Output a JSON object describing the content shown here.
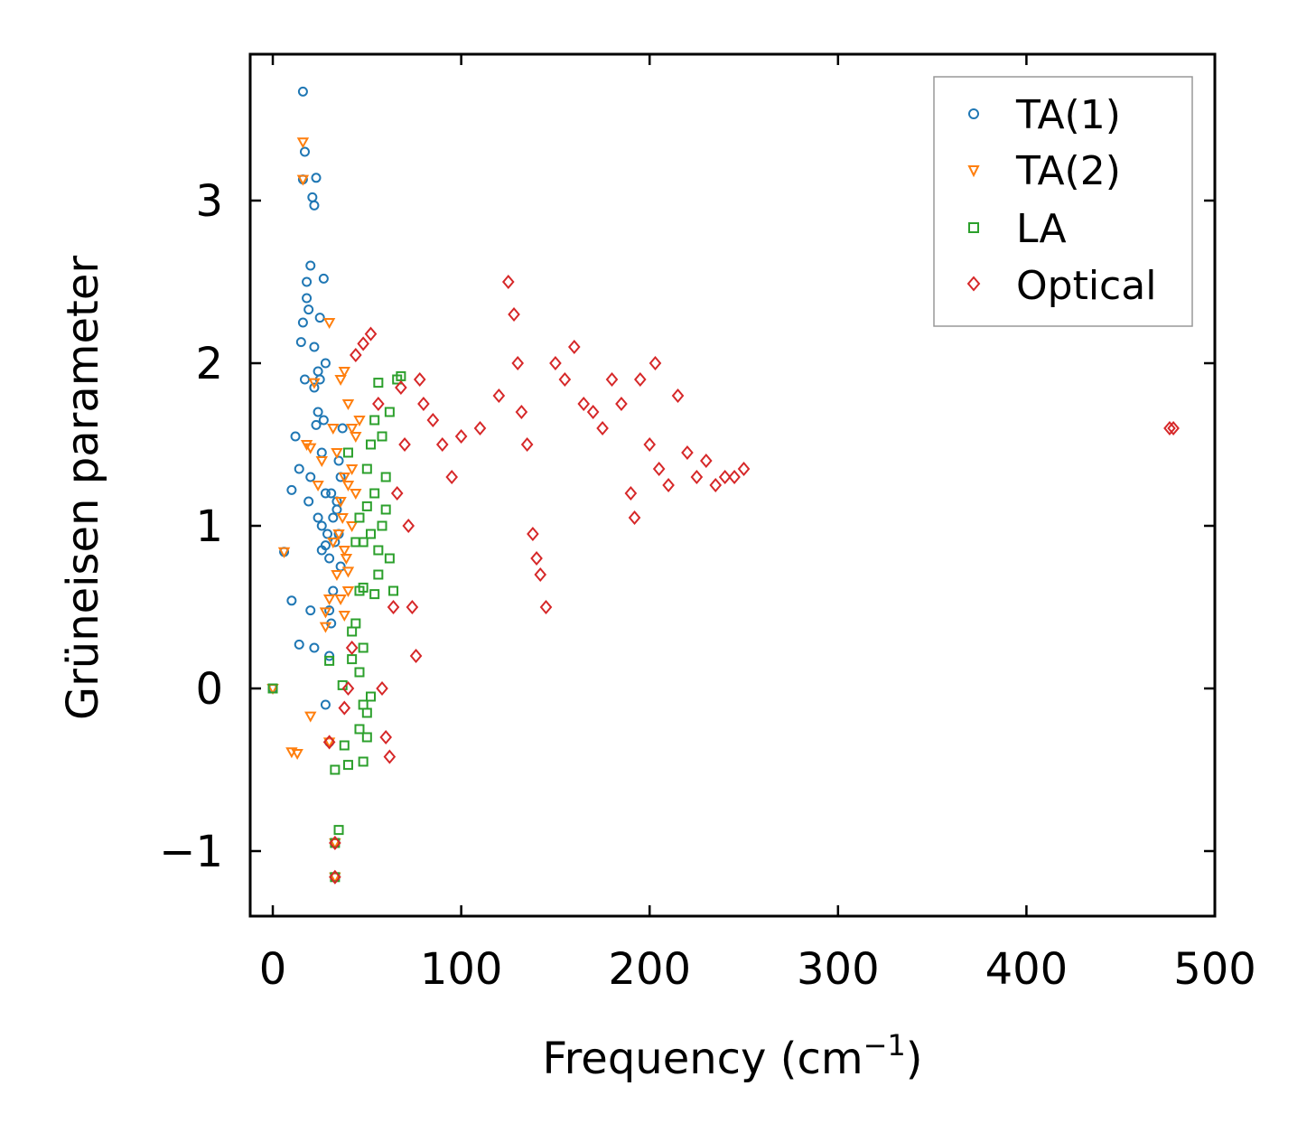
{
  "chart_data": {
    "type": "scatter",
    "title": "",
    "xlabel": "Frequency (cm",
    "xlabel_sup": "−1",
    "xlabel_close": ")",
    "ylabel": "Grüneisen parameter",
    "xlim": [
      -12,
      500
    ],
    "ylim": [
      -1.4,
      3.9
    ],
    "xticks": [
      0,
      100,
      200,
      300,
      400,
      500
    ],
    "yticks": [
      -1,
      0,
      1,
      2,
      3
    ],
    "xtick_labels": [
      "0",
      "100",
      "200",
      "300",
      "400",
      "500"
    ],
    "ytick_labels": [
      "−1",
      "0",
      "1",
      "2",
      "3"
    ],
    "grid": false,
    "legend_position": "top-right",
    "series": [
      {
        "name": "TA(1)",
        "color": "#1f77b4",
        "marker": "circle",
        "points": [
          [
            0,
            0
          ],
          [
            6,
            0.84
          ],
          [
            10,
            0.54
          ],
          [
            12,
            1.55
          ],
          [
            14,
            0.27
          ],
          [
            16,
            3.67
          ],
          [
            17,
            3.3
          ],
          [
            16,
            3.13
          ],
          [
            18,
            2.5
          ],
          [
            19,
            2.33
          ],
          [
            20,
            2.6
          ],
          [
            21,
            3.02
          ],
          [
            22,
            2.97
          ],
          [
            23,
            3.14
          ],
          [
            22,
            2.1
          ],
          [
            24,
            1.95
          ],
          [
            25,
            1.9
          ],
          [
            20,
            1.3
          ],
          [
            19,
            1.15
          ],
          [
            20,
            0.48
          ],
          [
            22,
            0.25
          ],
          [
            24,
            1.05
          ],
          [
            26,
            0.85
          ],
          [
            27,
            2.52
          ],
          [
            28,
            2.0
          ],
          [
            28,
            1.2
          ],
          [
            29,
            0.95
          ],
          [
            30,
            0.2
          ],
          [
            30,
            0.48
          ],
          [
            31,
            0.4
          ],
          [
            32,
            0.6
          ],
          [
            33,
            0.9
          ],
          [
            34,
            1.1
          ],
          [
            35,
            1.4
          ],
          [
            36,
            0.75
          ],
          [
            37,
            1.6
          ],
          [
            28,
            -0.1
          ],
          [
            30,
            -0.33
          ],
          [
            33,
            -0.95
          ],
          [
            33,
            -1.16
          ],
          [
            10,
            1.22
          ],
          [
            14,
            1.35
          ],
          [
            16,
            2.25
          ],
          [
            18,
            2.4
          ],
          [
            22,
            1.85
          ],
          [
            24,
            1.7
          ],
          [
            26,
            1.45
          ],
          [
            26,
            1.0
          ],
          [
            28,
            0.88
          ],
          [
            30,
            0.8
          ],
          [
            32,
            1.05
          ],
          [
            34,
            1.15
          ],
          [
            15,
            2.13
          ],
          [
            17,
            1.9
          ],
          [
            23,
            1.62
          ],
          [
            25,
            2.28
          ],
          [
            27,
            1.65
          ],
          [
            31,
            1.2
          ],
          [
            35,
            0.95
          ],
          [
            36,
            1.3
          ]
        ]
      },
      {
        "name": "TA(2)",
        "color": "#ff7f0e",
        "marker": "triangle-down",
        "points": [
          [
            0,
            0
          ],
          [
            6,
            0.84
          ],
          [
            10,
            -0.39
          ],
          [
            13,
            -0.4
          ],
          [
            16,
            3.36
          ],
          [
            16,
            3.13
          ],
          [
            20,
            -0.17
          ],
          [
            28,
            0.47
          ],
          [
            30,
            -0.33
          ],
          [
            33,
            -0.95
          ],
          [
            33,
            -1.16
          ],
          [
            36,
            1.9
          ],
          [
            38,
            1.95
          ],
          [
            40,
            1.75
          ],
          [
            42,
            1.6
          ],
          [
            44,
            1.55
          ],
          [
            46,
            1.65
          ],
          [
            38,
            1.3
          ],
          [
            40,
            1.25
          ],
          [
            42,
            1.35
          ],
          [
            36,
            0.55
          ],
          [
            38,
            0.45
          ],
          [
            40,
            0.6
          ],
          [
            35,
            0.95
          ],
          [
            37,
            1.05
          ],
          [
            39,
            0.8
          ],
          [
            34,
            0.7
          ],
          [
            32,
            0.9
          ],
          [
            30,
            0.55
          ],
          [
            28,
            0.38
          ],
          [
            18,
            1.5
          ],
          [
            20,
            1.48
          ],
          [
            22,
            1.88
          ],
          [
            24,
            1.25
          ],
          [
            26,
            1.4
          ],
          [
            30,
            2.25
          ],
          [
            32,
            1.6
          ],
          [
            34,
            1.45
          ],
          [
            36,
            1.15
          ],
          [
            38,
            0.85
          ],
          [
            40,
            0.72
          ],
          [
            42,
            1.0
          ],
          [
            44,
            1.2
          ]
        ]
      },
      {
        "name": "LA",
        "color": "#2ca02c",
        "marker": "square",
        "points": [
          [
            0,
            0
          ],
          [
            30,
            0.17
          ],
          [
            33,
            -0.5
          ],
          [
            35,
            -0.87
          ],
          [
            33,
            -0.95
          ],
          [
            33,
            -1.16
          ],
          [
            37,
            0.02
          ],
          [
            38,
            -0.35
          ],
          [
            40,
            -0.47
          ],
          [
            42,
            0.18
          ],
          [
            44,
            0.4
          ],
          [
            46,
            0.6
          ],
          [
            48,
            0.9
          ],
          [
            48,
            -0.45
          ],
          [
            50,
            -0.3
          ],
          [
            50,
            1.35
          ],
          [
            52,
            1.5
          ],
          [
            54,
            1.65
          ],
          [
            56,
            1.88
          ],
          [
            58,
            1.55
          ],
          [
            60,
            1.1
          ],
          [
            62,
            0.8
          ],
          [
            64,
            0.6
          ],
          [
            66,
            1.9
          ],
          [
            68,
            1.92
          ],
          [
            46,
            0.1
          ],
          [
            48,
            0.25
          ],
          [
            50,
            -0.15
          ],
          [
            52,
            -0.05
          ],
          [
            54,
            0.58
          ],
          [
            56,
            0.7
          ],
          [
            58,
            1.0
          ],
          [
            60,
            1.3
          ],
          [
            62,
            1.7
          ],
          [
            50,
            1.12
          ],
          [
            52,
            0.95
          ],
          [
            54,
            1.2
          ],
          [
            56,
            0.85
          ],
          [
            40,
            1.45
          ],
          [
            44,
            0.9
          ],
          [
            46,
            1.05
          ],
          [
            48,
            0.62
          ],
          [
            42,
            0.35
          ],
          [
            46,
            -0.25
          ],
          [
            48,
            -0.1
          ]
        ]
      },
      {
        "name": "Optical",
        "color": "#d62728",
        "marker": "diamond",
        "points": [
          [
            33,
            -1.16
          ],
          [
            33,
            -0.95
          ],
          [
            30,
            -0.33
          ],
          [
            38,
            -0.12
          ],
          [
            40,
            0.0
          ],
          [
            42,
            0.25
          ],
          [
            44,
            2.05
          ],
          [
            48,
            2.12
          ],
          [
            52,
            2.18
          ],
          [
            56,
            1.75
          ],
          [
            58,
            0.0
          ],
          [
            60,
            -0.3
          ],
          [
            62,
            -0.42
          ],
          [
            64,
            0.5
          ],
          [
            66,
            1.2
          ],
          [
            68,
            1.85
          ],
          [
            70,
            1.5
          ],
          [
            72,
            1.0
          ],
          [
            74,
            0.5
          ],
          [
            76,
            0.2
          ],
          [
            78,
            1.9
          ],
          [
            80,
            1.75
          ],
          [
            85,
            1.65
          ],
          [
            90,
            1.5
          ],
          [
            95,
            1.3
          ],
          [
            100,
            1.55
          ],
          [
            110,
            1.6
          ],
          [
            120,
            1.8
          ],
          [
            125,
            2.5
          ],
          [
            128,
            2.3
          ],
          [
            130,
            2.0
          ],
          [
            132,
            1.7
          ],
          [
            135,
            1.5
          ],
          [
            138,
            0.95
          ],
          [
            140,
            0.8
          ],
          [
            142,
            0.7
          ],
          [
            145,
            0.5
          ],
          [
            150,
            2.0
          ],
          [
            155,
            1.9
          ],
          [
            160,
            2.1
          ],
          [
            165,
            1.75
          ],
          [
            170,
            1.7
          ],
          [
            175,
            1.6
          ],
          [
            180,
            1.9
          ],
          [
            185,
            1.75
          ],
          [
            190,
            1.2
          ],
          [
            192,
            1.05
          ],
          [
            195,
            1.9
          ],
          [
            200,
            1.5
          ],
          [
            203,
            2.0
          ],
          [
            205,
            1.35
          ],
          [
            210,
            1.25
          ],
          [
            215,
            1.8
          ],
          [
            220,
            1.45
          ],
          [
            225,
            1.3
          ],
          [
            230,
            1.4
          ],
          [
            235,
            1.25
          ],
          [
            240,
            1.3
          ],
          [
            245,
            1.3
          ],
          [
            250,
            1.35
          ],
          [
            476,
            1.6
          ],
          [
            478,
            1.6
          ]
        ]
      }
    ]
  },
  "legend": {
    "entries": [
      "TA(1)",
      "TA(2)",
      "LA",
      "Optical"
    ]
  }
}
